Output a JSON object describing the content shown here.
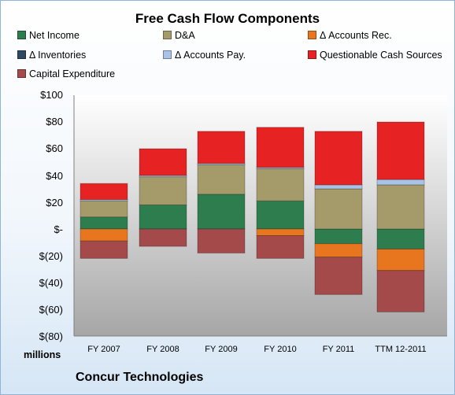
{
  "chart_data": {
    "type": "bar",
    "stacked": true,
    "title": "Free Cash Flow Components",
    "categories": [
      "FY 2007",
      "FY 2008",
      "FY 2009",
      "FY 2010",
      "FY 2011",
      "TTM 12-2011"
    ],
    "series": [
      {
        "name": "Net Income",
        "color": "#2e7d4f",
        "values": [
          9,
          18,
          26,
          21,
          -11,
          -15
        ]
      },
      {
        "name": "D&A",
        "color": "#a59b6a",
        "values": [
          12,
          21,
          22,
          24,
          30,
          33
        ]
      },
      {
        "name": "Δ Accounts Rec.",
        "color": "#e8761f",
        "values": [
          -9,
          0,
          0,
          -5,
          -10,
          -16
        ]
      },
      {
        "name": "Δ Inventories",
        "color": "#2e4a62",
        "values": [
          0,
          0,
          0,
          0,
          0,
          0
        ]
      },
      {
        "name": "Δ Accounts Pay.",
        "color": "#a9c3e6",
        "values": [
          1,
          1,
          1,
          1,
          3,
          4
        ]
      },
      {
        "name": "Questionable Cash Sources",
        "color": "#e62222",
        "values": [
          12,
          20,
          24,
          30,
          40,
          43
        ]
      },
      {
        "name": "Capital Expenditure",
        "color": "#a44a4a",
        "values": [
          -13,
          -13,
          -18,
          -17,
          -28,
          -31
        ]
      }
    ],
    "yticks": [
      "$100",
      "$80",
      "$60",
      "$40",
      "$20",
      "$-",
      "$(20)",
      "$(40)",
      "$(60)",
      "$(80)"
    ],
    "ytick_values": [
      100,
      80,
      60,
      40,
      20,
      0,
      -20,
      -40,
      -60,
      -80
    ],
    "ylim": [
      -80,
      100
    ],
    "ylabel": "millions",
    "legend_position": "top",
    "grid": false
  },
  "footer": {
    "company": "Concur Technologies"
  }
}
